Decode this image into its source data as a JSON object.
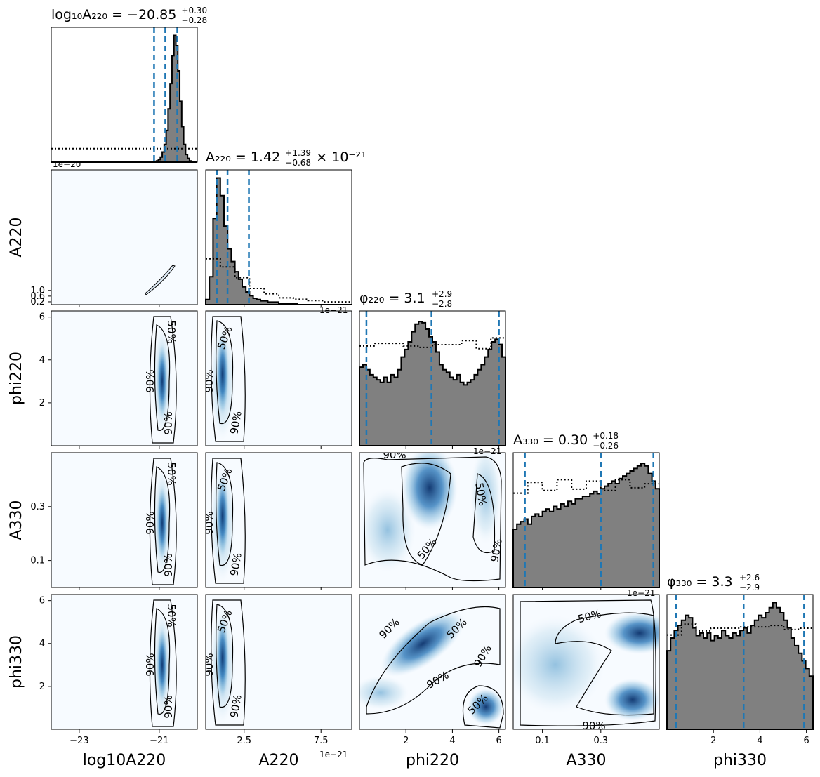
{
  "chart_data": {
    "type": "corner",
    "colors": {
      "hist_fill": "#808080",
      "hist_edge": "#000000",
      "quantile_line": "#1f77b4",
      "density_cmap": "Blues",
      "contour": "#000000"
    },
    "parameters": [
      {
        "key": "logA220",
        "label": "log10A220",
        "range": [
          -23.7,
          -20.05
        ],
        "ticks": [
          -23,
          -21
        ],
        "tick_labels": [
          "−23",
          "−21"
        ],
        "offset": "1e−20",
        "title": {
          "main": "log₁₀A₂₂₀ = −20.85",
          "sup": "+0.30",
          "sub": "−0.28"
        },
        "median": -20.85,
        "quantiles": [
          -21.13,
          -20.85,
          -20.55
        ]
      },
      {
        "key": "A220",
        "label": "A220",
        "range": [
          0.0,
          9.5
        ],
        "ticks": [
          2.5,
          7.5
        ],
        "tick_labels": [
          "2.5",
          "7.5"
        ],
        "offset": "1e−21",
        "title": {
          "main": "A₂₂₀ = 1.42",
          "sup": "+1.39",
          "sub": "−0.68",
          "suffix": "× 10⁻²¹"
        },
        "median": 1.42,
        "quantiles": [
          0.74,
          1.42,
          2.81
        ]
      },
      {
        "key": "phi220",
        "label": "phi220",
        "range": [
          0.0,
          6.2832
        ],
        "ticks": [
          2,
          4,
          6
        ],
        "tick_labels": [
          "2",
          "4",
          "6"
        ],
        "offset": "1e−21",
        "title": {
          "main": "φ₂₂₀ = 3.1",
          "sup": "+2.9",
          "sub": "−2.8"
        },
        "median": 3.1,
        "quantiles": [
          0.3,
          3.1,
          6.0
        ]
      },
      {
        "key": "A330",
        "label": "A330",
        "range": [
          0.0,
          0.5
        ],
        "ticks": [
          0.1,
          0.3
        ],
        "tick_labels": [
          "0.1",
          "0.3"
        ],
        "offset": "1e−21",
        "title": {
          "main": "A₃₃₀ = 0.30",
          "sup": "+0.18",
          "sub": "−0.26"
        },
        "median": 0.3,
        "quantiles": [
          0.04,
          0.3,
          0.48
        ]
      },
      {
        "key": "phi330",
        "label": "phi330",
        "range": [
          0.0,
          6.2832
        ],
        "ticks": [
          2,
          4,
          6
        ],
        "tick_labels": [
          "2",
          "4",
          "6"
        ],
        "offset": "",
        "title": {
          "main": "φ₃₃₀ = 3.3",
          "sup": "+2.6",
          "sub": "−2.9"
        },
        "median": 3.3,
        "quantiles": [
          0.4,
          3.3,
          5.9
        ]
      }
    ],
    "y_axis_ticks": {
      "A220": {
        "ticks": [
          0.2,
          0.6,
          1.0
        ],
        "tick_labels": [
          "0.2",
          "0.6",
          "1.0"
        ],
        "offset": "1e−20"
      },
      "phi220": {
        "ticks": [
          2,
          4,
          6
        ],
        "tick_labels": [
          "2",
          "4",
          "6"
        ]
      },
      "A330": {
        "ticks": [
          0.1,
          0.3
        ],
        "tick_labels": [
          "0.1",
          "0.3"
        ]
      },
      "phi330": {
        "ticks": [
          2,
          4,
          6
        ],
        "tick_labels": [
          "2",
          "4",
          "6"
        ]
      }
    },
    "prior_hist": [
      [
        0.1,
        0.1,
        0.1,
        0.1,
        0.1,
        0.1,
        0.1,
        0.1,
        0.1,
        0.1
      ],
      [
        0.34,
        0.28,
        0.2,
        0.12,
        0.08,
        0.05,
        0.04,
        0.03,
        0.02,
        0.02
      ],
      [
        0.76,
        0.74,
        0.78,
        0.72,
        0.75,
        0.73,
        0.77,
        0.76,
        0.74,
        0.78
      ],
      [
        0.72,
        0.76,
        0.74,
        0.78,
        0.75,
        0.77,
        0.74,
        0.78,
        0.76,
        0.75
      ],
      [
        0.72,
        0.76,
        0.75,
        0.73,
        0.77,
        0.74,
        0.78,
        0.75,
        0.76,
        0.73
      ]
    ],
    "posterior_hist": [
      [
        0,
        0,
        0,
        0,
        0,
        0,
        0,
        0,
        0,
        0,
        0,
        0,
        0,
        0,
        0,
        0,
        0,
        0,
        0,
        0,
        0,
        0,
        0,
        0,
        0,
        0,
        0,
        0,
        0,
        0,
        0,
        0,
        0,
        0,
        0,
        0,
        0,
        0,
        0,
        0,
        0,
        0,
        0,
        0,
        0,
        0,
        0,
        0,
        0,
        0,
        0,
        0,
        0,
        0,
        0.01,
        0.02,
        0.04,
        0.08,
        0.14,
        0.25,
        0.42,
        0.62,
        0.84,
        1.0,
        0.92,
        0.72,
        0.48,
        0.28,
        0.14,
        0.06,
        0.03,
        0.01,
        0,
        0,
        0
      ],
      [
        0.04,
        0.22,
        0.68,
        1.0,
        0.86,
        0.62,
        0.44,
        0.34,
        0.26,
        0.2,
        0.14,
        0.1,
        0.07,
        0.05,
        0.04,
        0.03,
        0.03,
        0.02,
        0.02,
        0.02,
        0.01,
        0.01,
        0.01,
        0.01,
        0.01,
        0,
        0,
        0,
        0,
        0,
        0,
        0,
        0,
        0,
        0,
        0,
        0,
        0,
        0,
        0
      ],
      [
        0.62,
        0.64,
        0.6,
        0.56,
        0.54,
        0.52,
        0.5,
        0.54,
        0.5,
        0.56,
        0.54,
        0.6,
        0.7,
        0.76,
        0.82,
        0.9,
        0.96,
        0.98,
        0.97,
        0.92,
        0.86,
        0.82,
        0.74,
        0.64,
        0.6,
        0.58,
        0.54,
        0.52,
        0.56,
        0.5,
        0.48,
        0.5,
        0.52,
        0.56,
        0.6,
        0.64,
        0.7,
        0.76,
        0.82,
        0.84,
        0.8,
        0.7
      ],
      [
        0.46,
        0.5,
        0.52,
        0.54,
        0.5,
        0.56,
        0.58,
        0.56,
        0.6,
        0.62,
        0.6,
        0.64,
        0.62,
        0.66,
        0.64,
        0.68,
        0.66,
        0.7,
        0.7,
        0.72,
        0.72,
        0.74,
        0.76,
        0.74,
        0.78,
        0.8,
        0.82,
        0.84,
        0.82,
        0.86,
        0.88,
        0.9,
        0.92,
        0.94,
        0.96,
        0.98,
        0.96,
        0.9,
        0.84,
        0.78
      ],
      [
        0.62,
        0.72,
        0.78,
        0.82,
        0.86,
        0.9,
        0.88,
        0.8,
        0.74,
        0.76,
        0.72,
        0.76,
        0.7,
        0.74,
        0.72,
        0.78,
        0.74,
        0.72,
        0.76,
        0.74,
        0.78,
        0.8,
        0.76,
        0.82,
        0.86,
        0.9,
        0.88,
        0.92,
        0.96,
        1.0,
        0.96,
        0.92,
        0.86,
        0.8,
        0.72,
        0.66,
        0.6,
        0.54,
        0.48,
        0.42
      ]
    ],
    "contour_labels": [
      "50%",
      "90%"
    ]
  }
}
